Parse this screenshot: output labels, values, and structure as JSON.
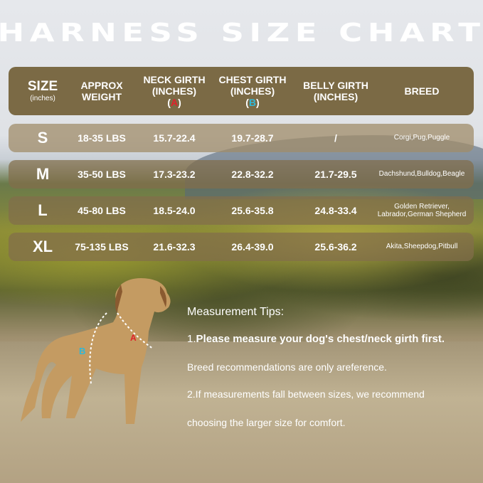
{
  "title": "HARNESS SIZE CHART",
  "header": {
    "size": "SIZE",
    "size_unit": "(inches)",
    "weight": "APPROX\nWEIGHT",
    "neck": "NECK GIRTH\n(INCHES)",
    "neck_marker": "A",
    "chest": "CHEST GIRTH\n(INCHES)",
    "chest_marker": "B",
    "belly": "BELLY GIRTH\n(INCHES)",
    "breed": "BREED"
  },
  "colors": {
    "marker_a": "#e0202a",
    "marker_b": "#2fb8d8",
    "header_bg": "#7b6a45"
  },
  "rows": [
    {
      "size": "S",
      "weight": "18-35 LBS",
      "neck": "15.7-22.4",
      "chest": "19.7-28.7",
      "belly": "/",
      "breed": "Corgi,Pug,Puggle"
    },
    {
      "size": "M",
      "weight": "35-50 LBS",
      "neck": "17.3-23.2",
      "chest": "22.8-32.2",
      "belly": "21.7-29.5",
      "breed": "Dachshund,Bulldog,Beagle"
    },
    {
      "size": "L",
      "weight": "45-80 LBS",
      "neck": "18.5-24.0",
      "chest": "25.6-35.8",
      "belly": "24.8-33.4",
      "breed": "Golden Retriever,\nLabrador,German Shepherd"
    },
    {
      "size": "XL",
      "weight": "75-135 LBS",
      "neck": "21.6-32.3",
      "chest": "26.4-39.0",
      "belly": "25.6-36.2",
      "breed": "Akita,Sheepdog,Pitbull"
    }
  ],
  "tips": {
    "heading": "Measurement Tips:",
    "tip1_num": "1.",
    "tip1": "Please measure your dog's chest/neck girth first.",
    "line2": "Breed recommendations are only areference.",
    "line3": "2.If measurements fall between sizes, we recommend",
    "line4": "choosing the larger size for comfort."
  },
  "dog_labels": {
    "a": "A",
    "b": "B"
  }
}
